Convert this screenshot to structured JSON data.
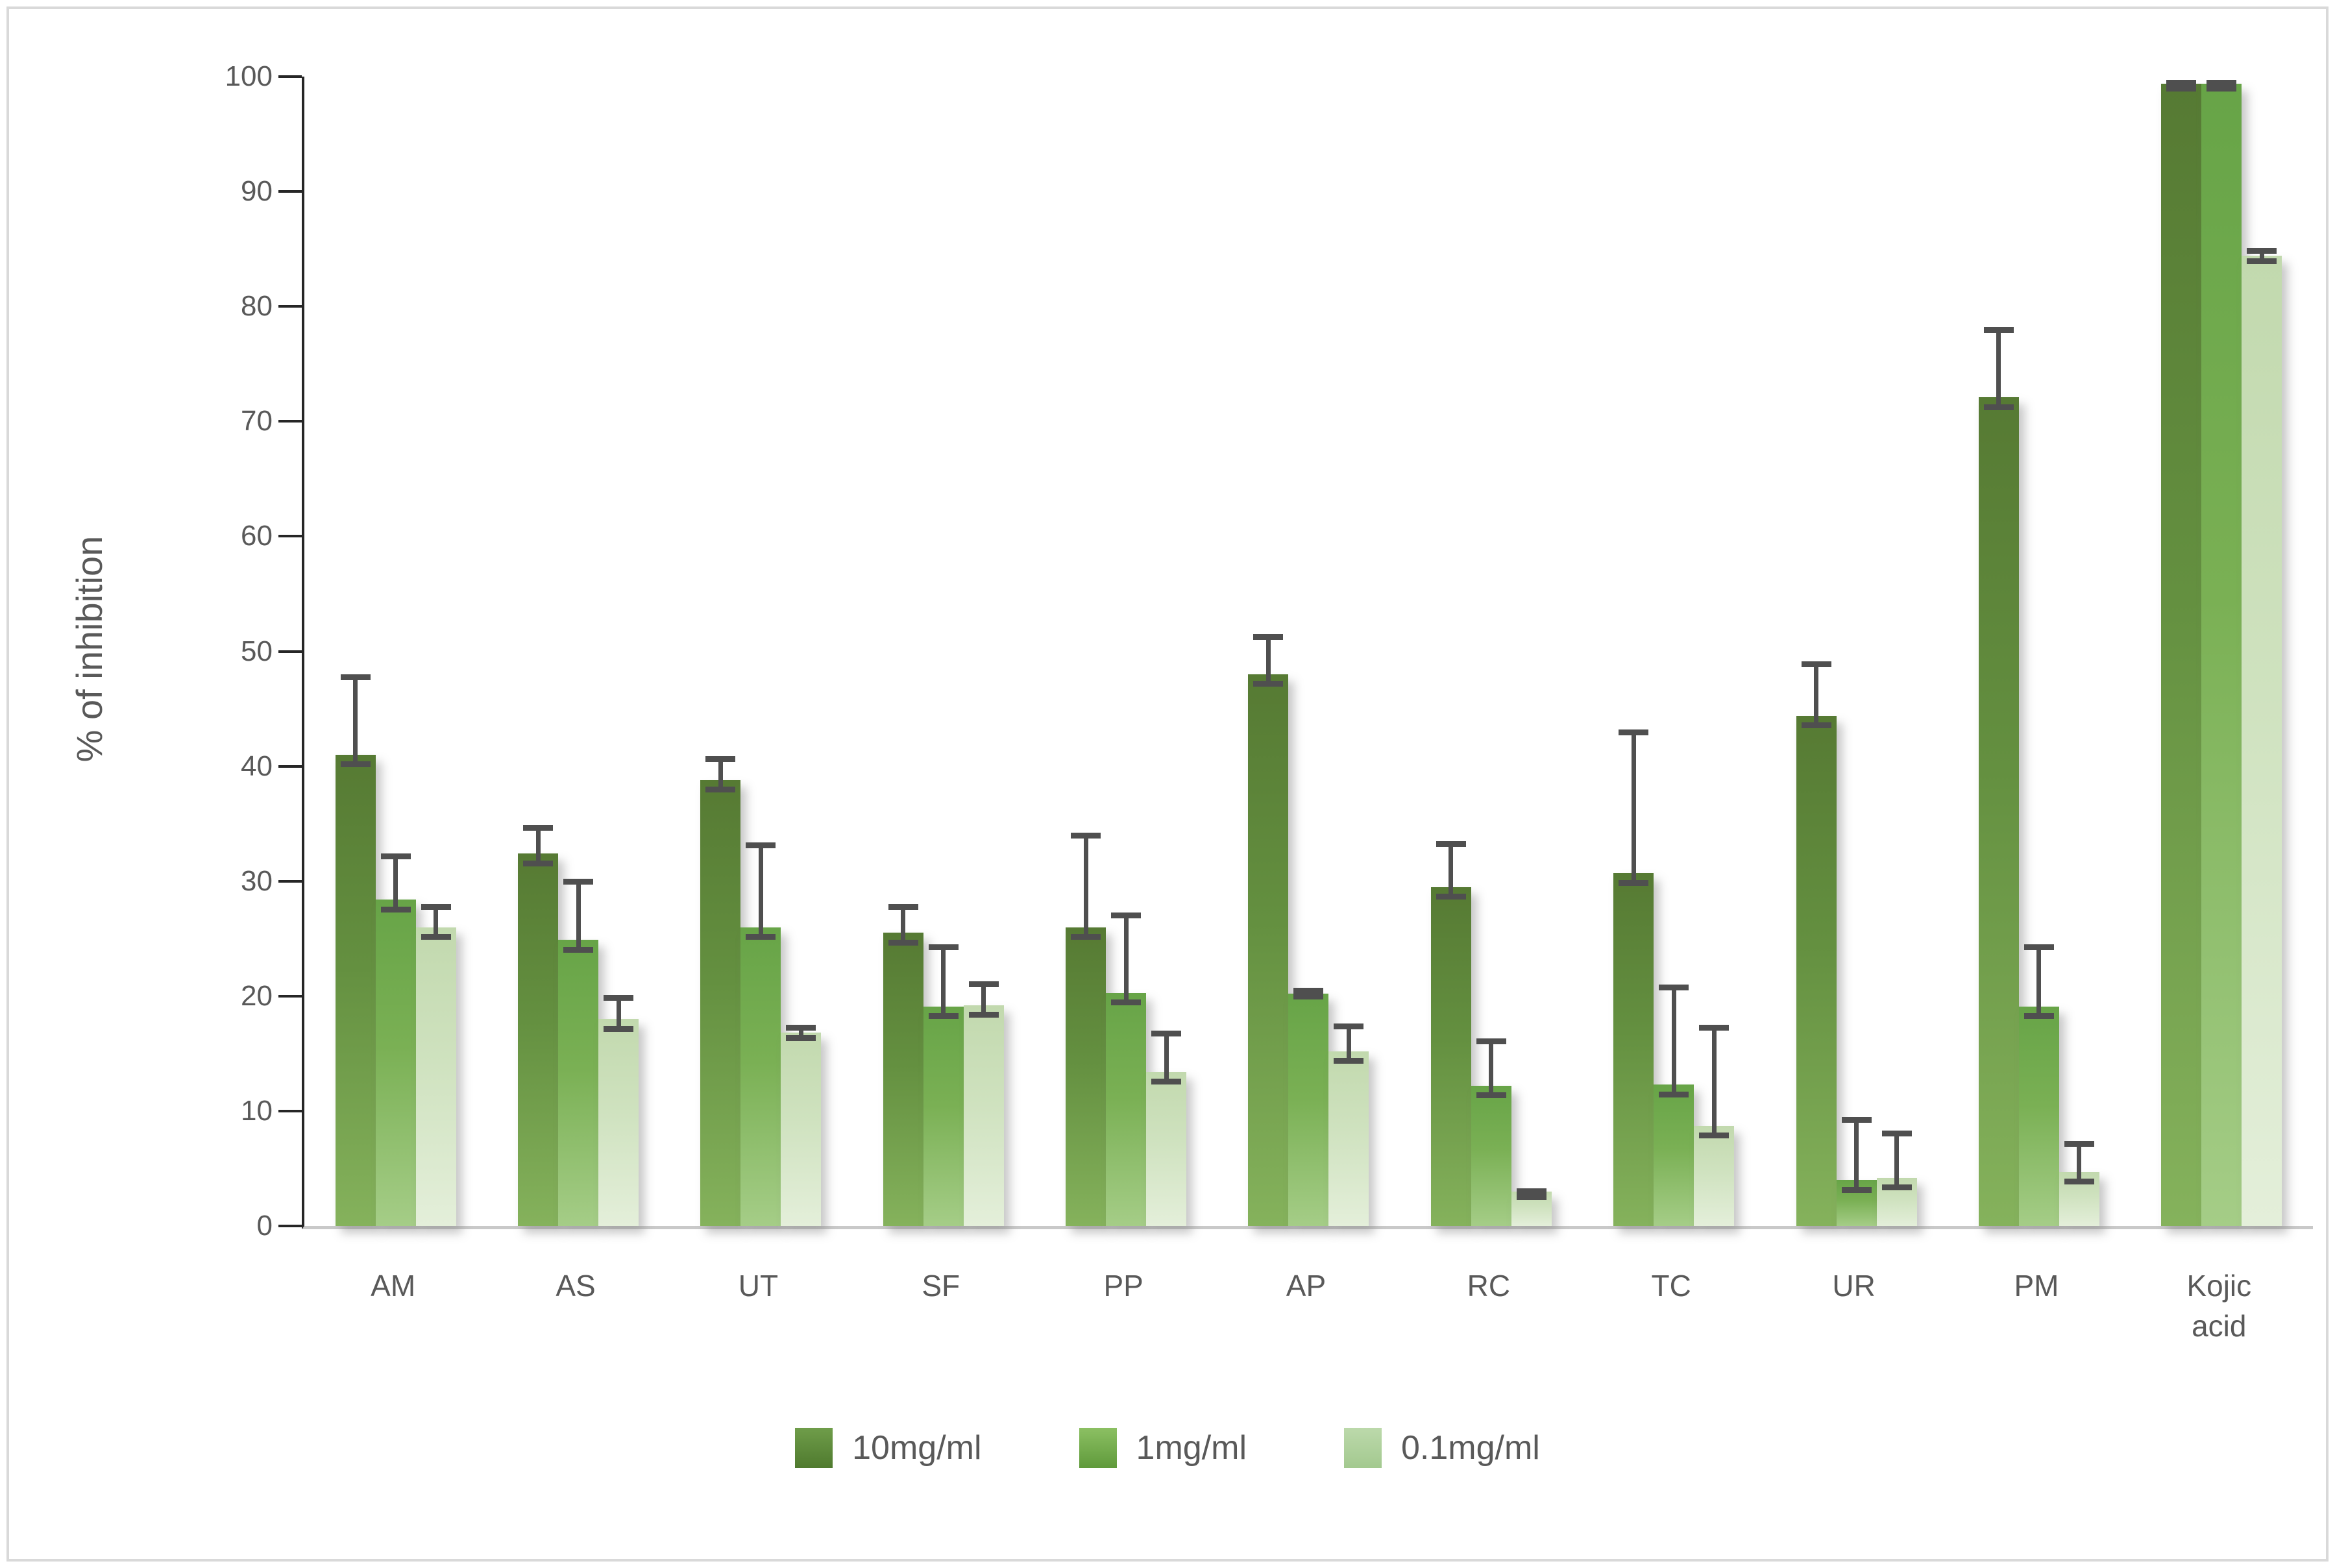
{
  "figure": {
    "background": "#ffffff",
    "border_color": "#d9d9d9"
  },
  "y_axis": {
    "title": "% of inhibition",
    "min": 0,
    "max": 100,
    "step": 10,
    "tick_labels": [
      "0",
      "10",
      "20",
      "30",
      "40",
      "50",
      "60",
      "70",
      "80",
      "90",
      "100"
    ],
    "axis_color": "#262626",
    "baseline_color": "#c9c9c9",
    "label_color": "#595959"
  },
  "x_axis": {
    "categories": [
      "AM",
      "AS",
      "UT",
      "SF",
      "PP",
      "AP",
      "RC",
      "TC",
      "UR",
      "PM",
      "Kojic acid"
    ],
    "label_color": "#595959"
  },
  "legend": {
    "items": [
      {
        "label": "10mg/ml",
        "color": "#5d8638"
      },
      {
        "label": "1mg/ml",
        "color": "#74ad4c"
      },
      {
        "label": "0.1mg/ml",
        "color": "#b2d4a2"
      }
    ]
  },
  "error_bar_color": "#4f4f4f",
  "chart_data": {
    "type": "bar",
    "title": "",
    "xlabel": "",
    "ylabel": "% of inhibition",
    "ylim": [
      0,
      100
    ],
    "grid": false,
    "legend_position": "bottom",
    "categories": [
      "AM",
      "AS",
      "UT",
      "SF",
      "PP",
      "AP",
      "RC",
      "TC",
      "UR",
      "PM",
      "Kojic acid"
    ],
    "series": [
      {
        "name": "10mg/ml",
        "color_top": "#567a33",
        "color_bottom": "#85b25c",
        "values": [
          41.0,
          32.4,
          38.8,
          25.5,
          26.0,
          48.0,
          29.5,
          30.7,
          44.4,
          72.1,
          99.4
        ],
        "errors_up": [
          7.0,
          2.5,
          2.1,
          2.5,
          8.2,
          3.5,
          4.0,
          12.5,
          4.7,
          6.1,
          0.3
        ]
      },
      {
        "name": "1mg/ml",
        "color_top": "#67a447",
        "color_bottom": "#a5cd87",
        "values": [
          28.4,
          24.9,
          26.0,
          19.1,
          20.3,
          20.2,
          12.2,
          12.3,
          4.0,
          19.1,
          99.4
        ],
        "errors_up": [
          4.0,
          5.3,
          7.4,
          5.4,
          7.0,
          0.5,
          4.1,
          8.7,
          5.5,
          5.4,
          0.3
        ]
      },
      {
        "name": "0.1mg/ml",
        "color_top": "#c2d9ae",
        "color_bottom": "#e4efda",
        "values": [
          26.0,
          18.0,
          16.8,
          19.2,
          13.4,
          15.2,
          3.0,
          8.7,
          4.2,
          4.7,
          84.4
        ],
        "errors_up": [
          2.0,
          2.1,
          0.7,
          2.1,
          3.6,
          2.4,
          0.3,
          8.8,
          4.1,
          2.7,
          0.7
        ]
      }
    ]
  }
}
